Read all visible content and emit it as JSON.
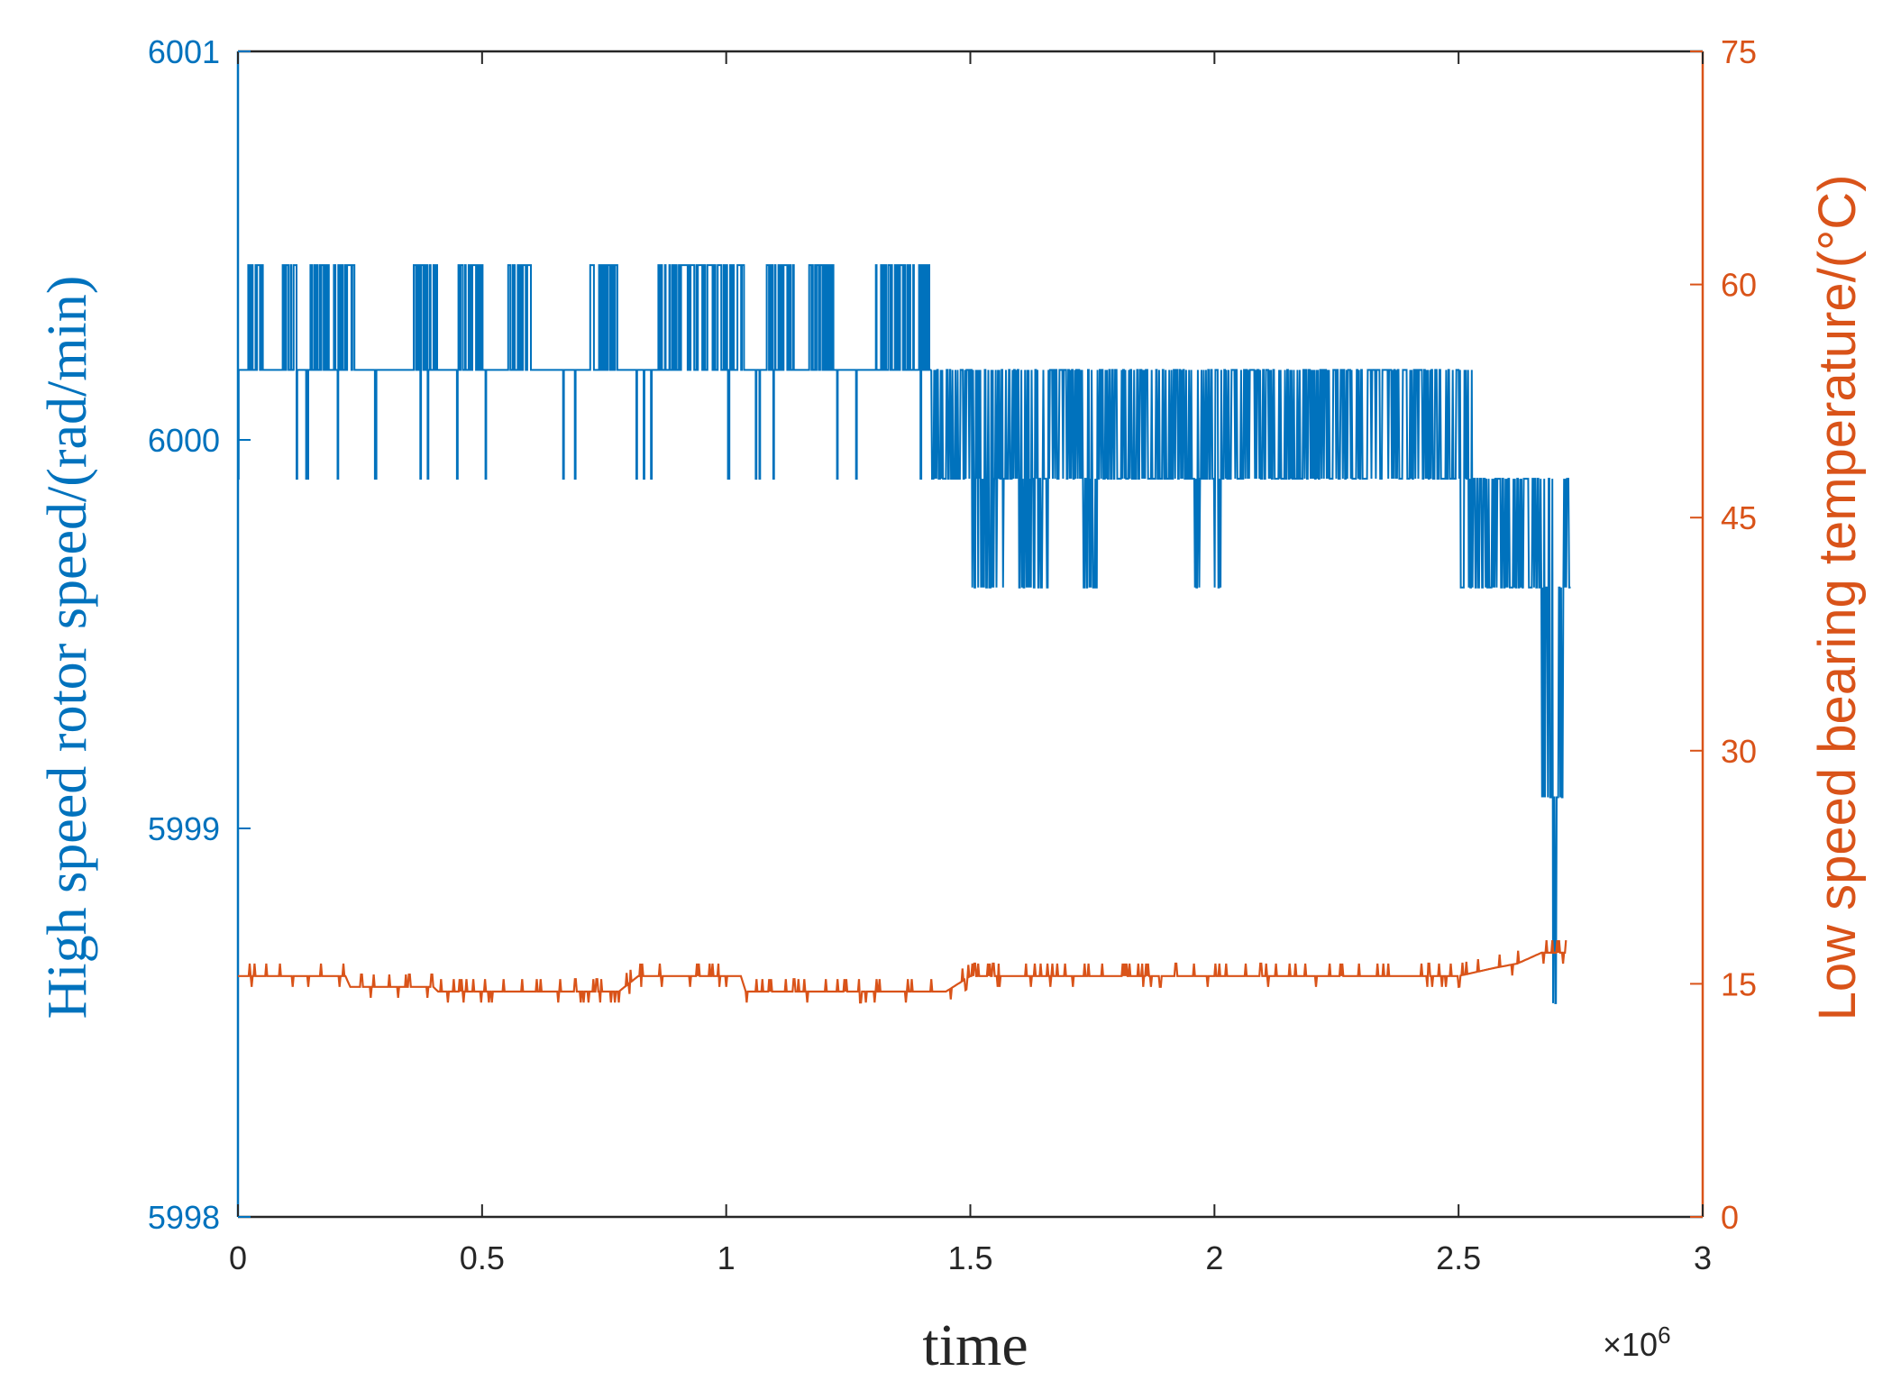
{
  "chart_data": {
    "type": "line",
    "title": "",
    "xlabel": "time",
    "x_multiplier": "×10",
    "x_multiplier_exp": "6",
    "xlim": [
      0,
      3
    ],
    "x_ticks": [
      "0",
      "0.5",
      "1",
      "1.5",
      "2",
      "2.5",
      "3"
    ],
    "grid": false,
    "axes": {
      "left": {
        "label": "High speed rotor speed/(rad/min)",
        "ylim": [
          5998,
          6001
        ],
        "ticks": [
          "5998",
          "5999",
          "6000",
          "6001"
        ],
        "color": "#0072BD"
      },
      "right": {
        "label": "Low speed bearing temperature/(°C)",
        "ylim": [
          0,
          75
        ],
        "ticks": [
          "0",
          "15",
          "30",
          "45",
          "60",
          "75"
        ],
        "color": "#D95319"
      }
    },
    "series": [
      {
        "axis": "left",
        "color": "#0072BD",
        "description_of_levels": "rotor speed values (x in units of 1e6)",
        "segments": [
          {
            "x": [
              0.0,
              1.42
            ],
            "base": 6000.18,
            "high": 6000.45,
            "low": 5999.9,
            "high_bursts": [
              [
                0.02,
                0.05
              ],
              [
                0.08,
                0.12
              ],
              [
                0.14,
                0.24
              ],
              [
                0.36,
                0.42
              ],
              [
                0.45,
                0.5
              ],
              [
                0.55,
                0.6
              ],
              [
                0.72,
                0.78
              ],
              [
                0.86,
                1.04
              ],
              [
                1.08,
                1.14
              ],
              [
                1.16,
                1.22
              ],
              [
                1.3,
                1.42
              ]
            ]
          },
          {
            "x": [
              1.42,
              2.53
            ],
            "base": 6000.18,
            "low": 5999.9,
            "dips": [
              [
                1.5,
                1.57
              ],
              [
                1.6,
                1.66
              ],
              [
                1.72,
                1.76
              ],
              [
                1.96,
                1.97
              ],
              [
                2.0,
                2.02
              ],
              [
                2.5,
                2.53
              ]
            ],
            "dip_level": 5999.62
          },
          {
            "x": [
              2.53,
              2.73
            ],
            "base": 5999.9,
            "low": 5999.62,
            "spikes_to": [
              5999.08,
              5998.55
            ]
          }
        ]
      },
      {
        "axis": "right",
        "color": "#D95319",
        "description_of_levels": "bearing temperature values (x in units of 1e6)",
        "points": [
          [
            0.0,
            15.5
          ],
          [
            0.22,
            15.5
          ],
          [
            0.23,
            14.8
          ],
          [
            0.4,
            14.8
          ],
          [
            0.41,
            14.5
          ],
          [
            0.78,
            14.5
          ],
          [
            0.82,
            15.5
          ],
          [
            1.03,
            15.5
          ],
          [
            1.04,
            14.5
          ],
          [
            1.45,
            14.5
          ],
          [
            1.5,
            15.5
          ],
          [
            2.5,
            15.5
          ],
          [
            2.57,
            16.0
          ],
          [
            2.62,
            16.3
          ],
          [
            2.67,
            17.0
          ],
          [
            2.72,
            17.0
          ]
        ]
      }
    ]
  }
}
